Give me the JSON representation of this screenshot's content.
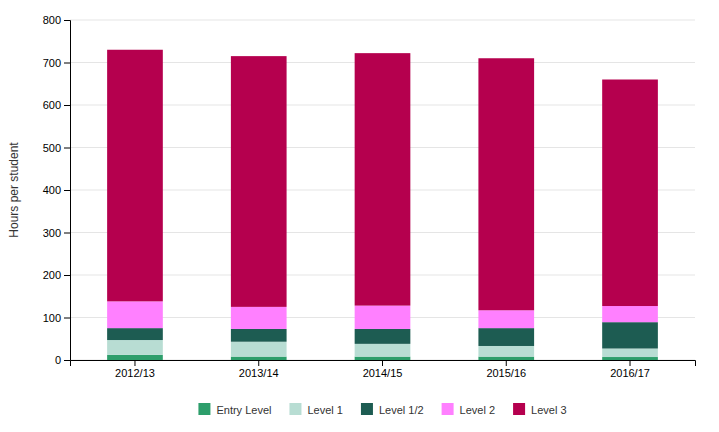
{
  "chart_data": {
    "type": "bar",
    "stacked": true,
    "categories": [
      "2012/13",
      "2013/14",
      "2014/15",
      "2015/16",
      "2016/17"
    ],
    "series": [
      {
        "name": "Entry Level",
        "color": "#2d9e6b",
        "values": [
          12,
          8,
          8,
          8,
          7
        ]
      },
      {
        "name": "Level 1",
        "color": "#b8ddd3",
        "values": [
          35,
          35,
          30,
          25,
          20
        ]
      },
      {
        "name": "Level 1/2",
        "color": "#1d5c52",
        "values": [
          28,
          30,
          35,
          42,
          62
        ]
      },
      {
        "name": "Level 2",
        "color": "#ff80ff",
        "values": [
          63,
          52,
          55,
          42,
          38
        ]
      },
      {
        "name": "Level 3",
        "color": "#b5004e",
        "values": [
          592,
          590,
          594,
          593,
          533
        ]
      }
    ],
    "ylabel": "Hours per student",
    "ylim": [
      0,
      800
    ],
    "yticks": [
      0,
      100,
      200,
      300,
      400,
      500,
      600,
      700,
      800
    ],
    "grid": true,
    "legend": "bottom"
  }
}
